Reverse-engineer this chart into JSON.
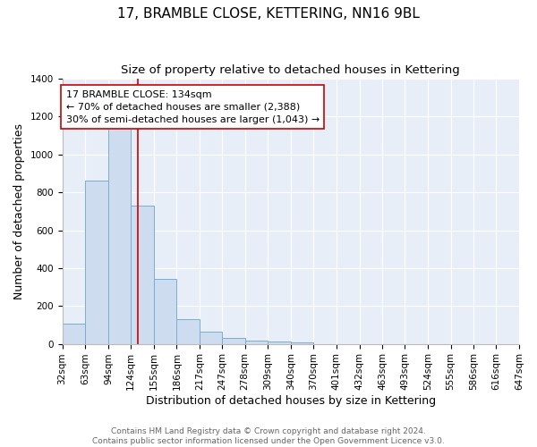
{
  "title": "17, BRAMBLE CLOSE, KETTERING, NN16 9BL",
  "subtitle": "Size of property relative to detached houses in Kettering",
  "xlabel": "Distribution of detached houses by size in Kettering",
  "ylabel": "Number of detached properties",
  "bar_color": "#cddcee",
  "bar_edge_color": "#7aadd4",
  "background_color": "#e8eef7",
  "grid_color": "#ffffff",
  "fig_background": "#ffffff",
  "bins": [
    32,
    63,
    94,
    124,
    155,
    186,
    217,
    247,
    278,
    309,
    340,
    370,
    401,
    432,
    463,
    493,
    524,
    555,
    586,
    616,
    647
  ],
  "counts": [
    105,
    863,
    1140,
    730,
    343,
    128,
    62,
    32,
    18,
    14,
    6,
    0,
    0,
    0,
    0,
    0,
    0,
    0,
    0,
    0
  ],
  "property_size": 134,
  "red_line_color": "#cc0000",
  "annotation_line1": "17 BRAMBLE CLOSE: 134sqm",
  "annotation_line2": "← 70% of detached houses are smaller (2,388)",
  "annotation_line3": "30% of semi-detached houses are larger (1,043) →",
  "annotation_box_color": "#ffffff",
  "annotation_box_edge": "#cc0000",
  "ylim": [
    0,
    1400
  ],
  "yticks": [
    0,
    200,
    400,
    600,
    800,
    1000,
    1200,
    1400
  ],
  "footer_line1": "Contains HM Land Registry data © Crown copyright and database right 2024.",
  "footer_line2": "Contains public sector information licensed under the Open Government Licence v3.0.",
  "title_fontsize": 11,
  "subtitle_fontsize": 9.5,
  "axis_label_fontsize": 9,
  "tick_fontsize": 7.5,
  "annotation_fontsize": 8,
  "footer_fontsize": 6.5
}
